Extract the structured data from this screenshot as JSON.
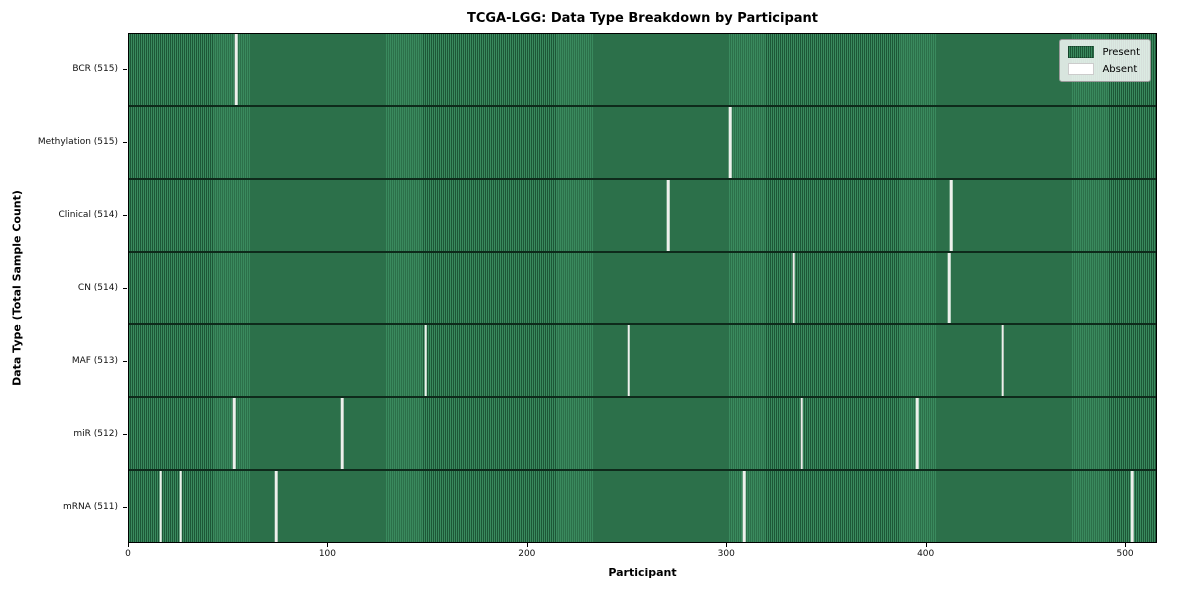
{
  "chart_data": {
    "type": "heatmap",
    "title": "TCGA-LGG: Data Type Breakdown by Participant",
    "xlabel": "Participant",
    "ylabel": "Data Type (Total Sample Count)",
    "n_participants": 516,
    "x_ticks": [
      0,
      100,
      200,
      300,
      400,
      500
    ],
    "legend_position": "upper right",
    "legend": [
      {
        "label": "Present",
        "color": "#2e8b57"
      },
      {
        "label": "Absent",
        "color": "#ffffff"
      }
    ],
    "colors": {
      "present_light": "#3a8a5e",
      "present_dark": "#1d5737",
      "absent": "#eef0ec",
      "row_separator": "#0e2a1b",
      "plot_border": "#000000"
    },
    "rows": [
      {
        "label": "BCR (515)",
        "present_count": 515,
        "absent_participants": [
          54
        ]
      },
      {
        "label": "Methylation (515)",
        "present_count": 515,
        "absent_participants": [
          302
        ]
      },
      {
        "label": "Clinical (514)",
        "present_count": 514,
        "absent_participants": [
          271,
          413
        ]
      },
      {
        "label": "CN (514)",
        "present_count": 514,
        "absent_participants": [
          334,
          412
        ]
      },
      {
        "label": "MAF (513)",
        "present_count": 513,
        "absent_participants": [
          149,
          251,
          439
        ]
      },
      {
        "label": "miR (512)",
        "present_count": 512,
        "absent_participants": [
          53,
          107,
          338,
          396
        ]
      },
      {
        "label": "mRNA (511)",
        "present_count": 511,
        "absent_participants": [
          16,
          26,
          74,
          309,
          504
        ]
      }
    ]
  }
}
